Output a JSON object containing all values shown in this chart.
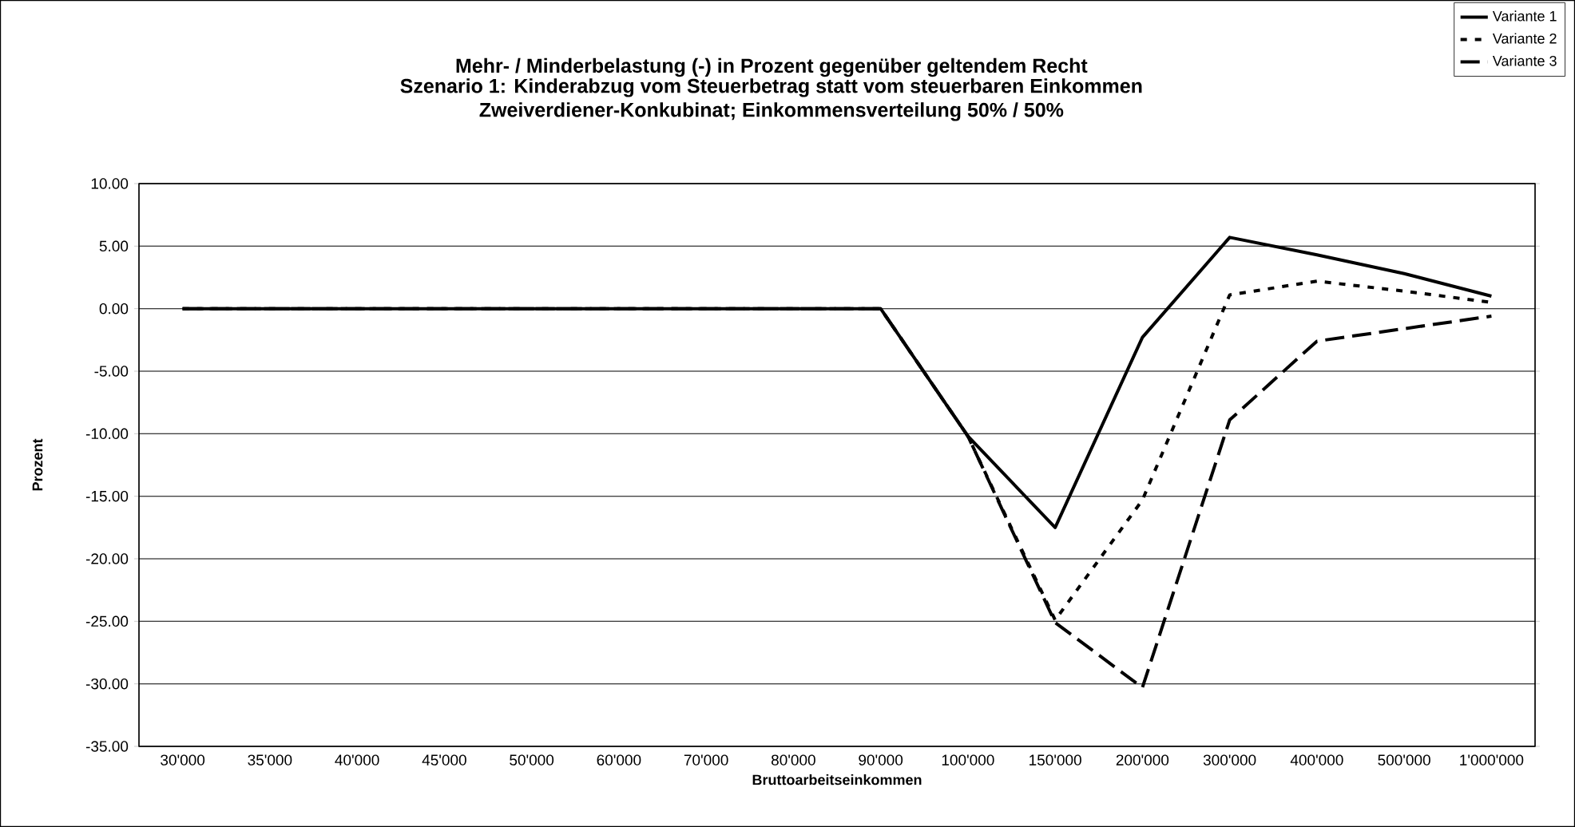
{
  "chart_data": {
    "type": "line",
    "title": "Mehr- / Minderbelastung (-) in Prozent gegenüber geltendem Recht",
    "subtitle": "Szenario 1: Kinderabzug vom  Steuerbetrag statt vom steuerbaren Einkommen Zweiverdiener-Konkubinat; Einkommensverteilung 50% / 50%",
    "xlabel": "Bruttoarbeitseinkommen",
    "ylabel": "Prozent",
    "categories": [
      "30'000",
      "35'000",
      "40'000",
      "45'000",
      "50'000",
      "60'000",
      "70'000",
      "80'000",
      "90'000",
      "100'000",
      "150'000",
      "200'000",
      "300'000",
      "400'000",
      "500'000",
      "1'000'000"
    ],
    "series": [
      {
        "name": "Variante 1",
        "color": "#000000",
        "line_style": "solid",
        "values": [
          0,
          0,
          0,
          0,
          0,
          0,
          0,
          0,
          0,
          -10.2,
          -17.5,
          -2.3,
          5.7,
          4.3,
          2.8,
          1.0
        ]
      },
      {
        "name": "Variante 2",
        "color": "#000000",
        "line_style": "dotted",
        "values": [
          0,
          0,
          0,
          0,
          0,
          0,
          0,
          0,
          0,
          -10.2,
          -24.9,
          -15.3,
          1.1,
          2.2,
          1.4,
          0.5
        ]
      },
      {
        "name": "Variante 3",
        "color": "#000000",
        "line_style": "dashed",
        "values": [
          0,
          0,
          0,
          0,
          0,
          0,
          0,
          0,
          0,
          -10.2,
          -25.1,
          -30.3,
          -8.9,
          -2.6,
          -1.6,
          -0.6
        ]
      }
    ],
    "ylim": [
      -35,
      10
    ],
    "yticks": [
      {
        "value": -35,
        "label": "-35.00"
      },
      {
        "value": -30,
        "label": "-30.00"
      },
      {
        "value": -25,
        "label": "-25.00"
      },
      {
        "value": -20,
        "label": "-20.00"
      },
      {
        "value": -15,
        "label": "-15.00"
      },
      {
        "value": -10,
        "label": "-10.00"
      },
      {
        "value": -5,
        "label": "-5.00"
      },
      {
        "value": 0,
        "label": "0.00"
      },
      {
        "value": 5,
        "label": "5.00"
      },
      {
        "value": 10,
        "label": "10.00"
      }
    ],
    "grid": "y",
    "legend": "top right"
  }
}
